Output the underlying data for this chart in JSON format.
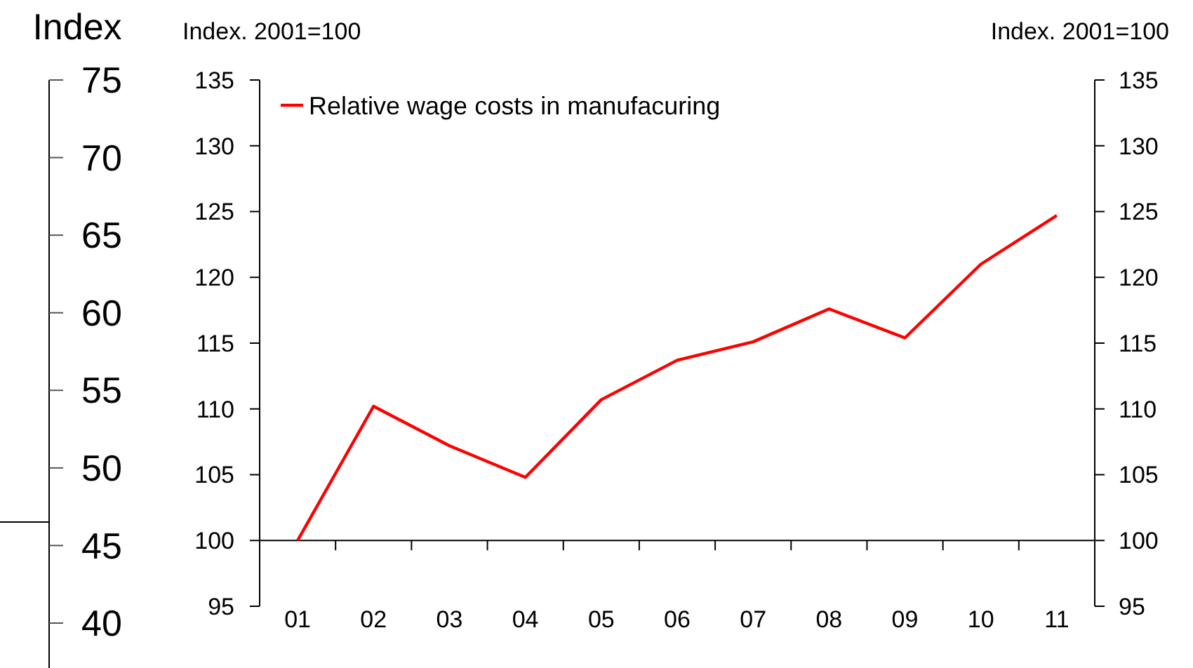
{
  "chart_data": {
    "type": "line",
    "ylabel": "Index. 2001=100",
    "y2label": "Index. 2001=100",
    "y3label": "Index",
    "categories": [
      "01",
      "02",
      "03",
      "04",
      "05",
      "06",
      "07",
      "08",
      "09",
      "10",
      "11"
    ],
    "series": [
      {
        "name": "Relative wage costs in manufacuring",
        "color": "#ff0000",
        "values": [
          100,
          110.2,
          107.2,
          104.8,
          110.7,
          113.7,
          115.1,
          117.6,
          115.4,
          121.0,
          124.7
        ]
      }
    ],
    "ylim": [
      95,
      135
    ],
    "yticks": [
      95,
      100,
      105,
      110,
      115,
      120,
      125,
      130,
      135
    ],
    "y2lim": [
      95,
      135
    ],
    "y2ticks": [
      95,
      100,
      105,
      110,
      115,
      120,
      125,
      130,
      135
    ],
    "y3lim": [
      40,
      75
    ],
    "y3ticks": [
      40,
      45,
      50,
      55,
      60,
      65,
      70,
      75
    ],
    "ref_lines": [
      {
        "axis": "y",
        "value": 100,
        "color": "#000000"
      }
    ],
    "legend": "top left",
    "grid": false,
    "marker": "none",
    "line_style": "solid"
  }
}
